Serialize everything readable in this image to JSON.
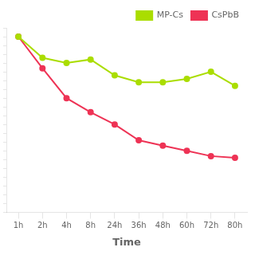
{
  "chart_data": {
    "type": "line",
    "categories": [
      "1h",
      "2h",
      "4h",
      "8h",
      "24h",
      "36h",
      "48h",
      "60h",
      "72h",
      "80h"
    ],
    "series": [
      {
        "name": "MP-Cs",
        "color": "#aadd00",
        "marker": "circle",
        "values": [
          100,
          88,
          85,
          87,
          78,
          74,
          74,
          76,
          80,
          72
        ]
      },
      {
        "name": "CsPbB",
        "color": "#ee3355",
        "marker": "circle",
        "values": [
          100,
          82,
          65,
          57,
          50,
          41,
          38,
          35,
          32,
          31
        ]
      }
    ],
    "xlabel": "Time",
    "ylim": [
      0,
      105
    ],
    "yticks": [
      0,
      5,
      10,
      15,
      20,
      25,
      30,
      35,
      40,
      45,
      50,
      55,
      60,
      65,
      70,
      75,
      80,
      85,
      90,
      95,
      100,
      105
    ],
    "grid": false,
    "legend": "upper right",
    "tick_labels": "x"
  }
}
